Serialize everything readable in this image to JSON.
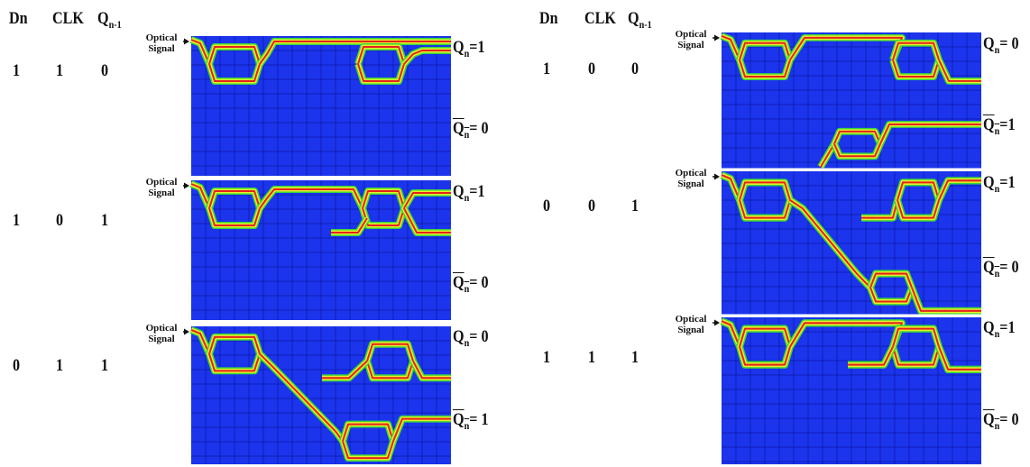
{
  "groups": [
    {
      "headers": [
        {
          "text": "Dn"
        },
        {
          "text": "CLK"
        },
        {
          "text": "Q",
          "sub": "n-1"
        }
      ],
      "rows": [
        {
          "inputs": [
            "1",
            "1",
            "0"
          ],
          "signal_label": [
            "Optical",
            "Signal"
          ],
          "outputs": [
            {
              "text": "Q",
              "sub": "n",
              "rest": "=1",
              "bar": false
            },
            {
              "text": "Q",
              "sub": "n",
              "rest": "= 0",
              "bar": true
            }
          ]
        },
        {
          "inputs": [
            "1",
            "0",
            "1"
          ],
          "signal_label": [
            "Optical",
            "Signal"
          ],
          "outputs": [
            {
              "text": "Q",
              "sub": "n",
              "rest": "=1",
              "bar": false
            },
            {
              "text": "Q",
              "sub": "n",
              "rest": "= 0",
              "bar": true
            }
          ]
        },
        {
          "inputs": [
            "0",
            "1",
            "1"
          ],
          "signal_label": [
            "Optical",
            "Signal"
          ],
          "outputs": [
            {
              "text": "Q",
              "sub": "n",
              "rest": "= 0",
              "bar": false
            },
            {
              "text": "Q",
              "sub": "n",
              "rest": "= 1",
              "bar": true
            }
          ]
        }
      ]
    },
    {
      "headers": [
        {
          "text": "Dn"
        },
        {
          "text": "CLK"
        },
        {
          "text": "Q",
          "sub": "n-1"
        }
      ],
      "rows": [
        {
          "inputs": [
            "1",
            "0",
            "0"
          ],
          "signal_label": [
            "Optical",
            "Signal"
          ],
          "outputs": [
            {
              "text": "Q",
              "sub": "n",
              "rest": "= 0",
              "bar": false
            },
            {
              "text": "Q",
              "sub": "n",
              "rest": "=1",
              "bar": true
            }
          ]
        },
        {
          "inputs": [
            "0",
            "0",
            "1"
          ],
          "signal_label": [
            "Optical",
            "Signal"
          ],
          "outputs": [
            {
              "text": "Q",
              "sub": "n",
              "rest": "=1",
              "bar": false
            },
            {
              "text": "Q",
              "sub": "n",
              "rest": "= 0",
              "bar": true
            }
          ]
        },
        {
          "inputs": [
            "1",
            "1",
            "1"
          ],
          "signal_label": [
            "Optical",
            "Signal"
          ],
          "outputs": [
            {
              "text": "Q",
              "sub": "n",
              "rest": "=1",
              "bar": false
            },
            {
              "text": "Q",
              "sub": "n",
              "rest": "= 0",
              "bar": true
            }
          ]
        }
      ]
    }
  ]
}
